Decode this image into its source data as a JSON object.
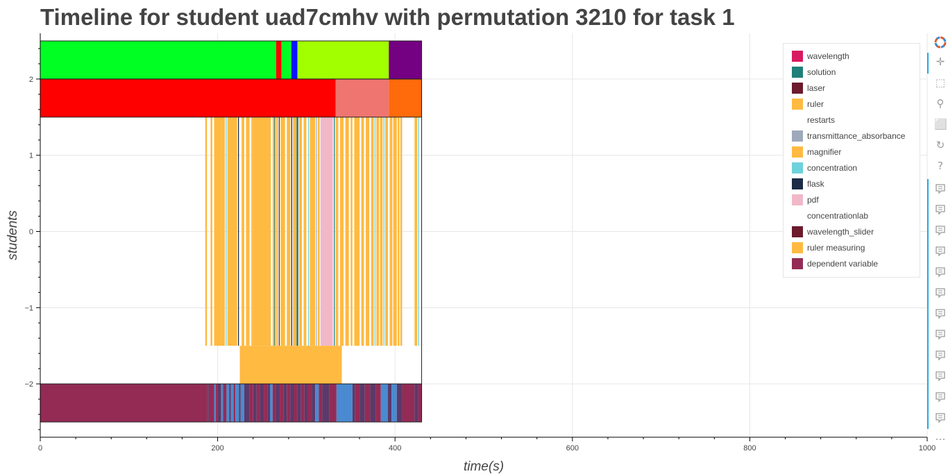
{
  "chart_data": {
    "type": "timeline",
    "title": "Timeline for student uad7cmhv with permutation 3210 for task 1",
    "xlabel": "time(s)",
    "ylabel": "students",
    "xlim": [
      0,
      1000
    ],
    "ylim": [
      -2.7,
      2.6
    ],
    "x_ticks": [
      0,
      200,
      400,
      600,
      800,
      1000
    ],
    "y_ticks": [
      2,
      1,
      0,
      -1,
      -2
    ],
    "y_tick_labels": [
      "2",
      "1",
      "0",
      "−1",
      "−2"
    ],
    "grid": true,
    "legend_position": "top-right",
    "legend": [
      {
        "label": "wavelength",
        "color": "#d81b60"
      },
      {
        "label": "solution",
        "color": "#1e8078"
      },
      {
        "label": "laser",
        "color": "#6c1a2e"
      },
      {
        "label": "ruler",
        "color": "#ffba42"
      },
      {
        "label": "restarts",
        "color": "#ffffff"
      },
      {
        "label": "transmittance_absorbance",
        "color": "#9eaabb"
      },
      {
        "label": "magnifier",
        "color": "#ffba42"
      },
      {
        "label": "concentration",
        "color": "#6dd2dc"
      },
      {
        "label": "flask",
        "color": "#1b2b45"
      },
      {
        "label": "pdf",
        "color": "#f1b8c8"
      },
      {
        "label": "concentrationlab",
        "color": "#ffffff"
      },
      {
        "label": "wavelength_slider",
        "color": "#6c1a2e"
      },
      {
        "label": "ruler measuring",
        "color": "#ffba42"
      },
      {
        "label": "dependent variable",
        "color": "#932b55"
      }
    ],
    "rows": [
      {
        "y_bottom": 2.0,
        "y_top": 2.5,
        "segments": [
          {
            "start": 0,
            "end": 266,
            "color": "#00ff22"
          },
          {
            "start": 266,
            "end": 272,
            "color": "#ff0000"
          },
          {
            "start": 272,
            "end": 281,
            "color": "#00ff22"
          },
          {
            "start": 281,
            "end": 283,
            "color": "#00ff22"
          },
          {
            "start": 283,
            "end": 290,
            "color": "#0a14ff"
          },
          {
            "start": 290,
            "end": 393,
            "color": "#a2ff00"
          },
          {
            "start": 393,
            "end": 430,
            "color": "#740082"
          }
        ]
      },
      {
        "y_bottom": 1.5,
        "y_top": 2.0,
        "segments": [
          {
            "start": 0,
            "end": 333,
            "color": "#ff0000"
          },
          {
            "start": 333,
            "end": 393,
            "color": "#ee7570"
          },
          {
            "start": 393,
            "end": 430,
            "color": "#ff6a0a"
          }
        ]
      },
      {
        "y_bottom": -1.5,
        "y_top": 1.5,
        "segments": [
          {
            "start": 186,
            "end": 188,
            "color": "#ffba42"
          },
          {
            "start": 192,
            "end": 194,
            "color": "#ffba42"
          },
          {
            "start": 196,
            "end": 208,
            "color": "#ffba42"
          },
          {
            "start": 209,
            "end": 210,
            "color": "#6dd2dc"
          },
          {
            "start": 211,
            "end": 222,
            "color": "#ffba42"
          },
          {
            "start": 223,
            "end": 224,
            "color": "#1b2b45"
          },
          {
            "start": 227,
            "end": 230,
            "color": "#ffba42"
          },
          {
            "start": 232,
            "end": 236,
            "color": "#ffba42"
          },
          {
            "start": 238,
            "end": 240,
            "color": "#ffba42"
          },
          {
            "start": 240,
            "end": 260,
            "color": "#ffba42"
          },
          {
            "start": 262,
            "end": 264,
            "color": "#ffba42"
          },
          {
            "start": 264,
            "end": 265,
            "color": "#1e8078"
          },
          {
            "start": 266,
            "end": 268,
            "color": "#ffba42"
          },
          {
            "start": 269,
            "end": 270,
            "color": "#6c1a2e"
          },
          {
            "start": 271,
            "end": 276,
            "color": "#ffba42"
          },
          {
            "start": 278,
            "end": 282,
            "color": "#ffba42"
          },
          {
            "start": 283,
            "end": 284,
            "color": "#1b2b45"
          },
          {
            "start": 285,
            "end": 289,
            "color": "#ffba42"
          },
          {
            "start": 289,
            "end": 291,
            "color": "#1e8078"
          },
          {
            "start": 292,
            "end": 295,
            "color": "#ffba42"
          },
          {
            "start": 297,
            "end": 300,
            "color": "#ffba42"
          },
          {
            "start": 302,
            "end": 303,
            "color": "#6dd2dc"
          },
          {
            "start": 304,
            "end": 310,
            "color": "#ffba42"
          },
          {
            "start": 311,
            "end": 312,
            "color": "#9eaabb"
          },
          {
            "start": 313,
            "end": 315,
            "color": "#ffba42"
          },
          {
            "start": 316,
            "end": 330,
            "color": "#f1b8c8"
          },
          {
            "start": 331,
            "end": 332,
            "color": "#1e8078"
          },
          {
            "start": 333,
            "end": 336,
            "color": "#ffba42"
          },
          {
            "start": 338,
            "end": 342,
            "color": "#ffba42"
          },
          {
            "start": 344,
            "end": 348,
            "color": "#ffba42"
          },
          {
            "start": 350,
            "end": 352,
            "color": "#ffba42"
          },
          {
            "start": 354,
            "end": 360,
            "color": "#ffba42"
          },
          {
            "start": 362,
            "end": 365,
            "color": "#ffba42"
          },
          {
            "start": 367,
            "end": 371,
            "color": "#ffba42"
          },
          {
            "start": 373,
            "end": 376,
            "color": "#ffba42"
          },
          {
            "start": 377,
            "end": 378,
            "color": "#6dd2dc"
          },
          {
            "start": 379,
            "end": 382,
            "color": "#ffba42"
          },
          {
            "start": 383,
            "end": 386,
            "color": "#ffba42"
          },
          {
            "start": 387,
            "end": 388,
            "color": "#6dd2dc"
          },
          {
            "start": 389,
            "end": 392,
            "color": "#ffba42"
          },
          {
            "start": 394,
            "end": 397,
            "color": "#ffba42"
          },
          {
            "start": 398,
            "end": 402,
            "color": "#ffba42"
          },
          {
            "start": 403,
            "end": 405,
            "color": "#ffba42"
          },
          {
            "start": 406,
            "end": 408,
            "color": "#ffba42"
          },
          {
            "start": 422,
            "end": 425,
            "color": "#ffba42"
          },
          {
            "start": 426,
            "end": 427,
            "color": "#6dd2dc"
          }
        ]
      },
      {
        "y_bottom": -2.0,
        "y_top": -1.5,
        "segments": [
          {
            "start": 225,
            "end": 340,
            "color": "#ffba42"
          }
        ]
      },
      {
        "y_bottom": -2.5,
        "y_top": -2.0,
        "segments": [
          {
            "start": 0,
            "end": 188,
            "color": "#932b55"
          },
          {
            "start": 188,
            "end": 190,
            "color": "#5a3a6a"
          },
          {
            "start": 190,
            "end": 196,
            "color": "#932b55"
          },
          {
            "start": 196,
            "end": 198,
            "color": "#4a8ad0"
          },
          {
            "start": 198,
            "end": 200,
            "color": "#932b55"
          },
          {
            "start": 200,
            "end": 204,
            "color": "#5a3a6a"
          },
          {
            "start": 204,
            "end": 206,
            "color": "#4a8ad0"
          },
          {
            "start": 206,
            "end": 210,
            "color": "#932b55"
          },
          {
            "start": 210,
            "end": 213,
            "color": "#4a8ad0"
          },
          {
            "start": 213,
            "end": 215,
            "color": "#5a3a6a"
          },
          {
            "start": 215,
            "end": 218,
            "color": "#4a8ad0"
          },
          {
            "start": 218,
            "end": 220,
            "color": "#932b55"
          },
          {
            "start": 220,
            "end": 224,
            "color": "#4a8ad0"
          },
          {
            "start": 224,
            "end": 226,
            "color": "#5a3a6a"
          },
          {
            "start": 226,
            "end": 230,
            "color": "#4a8ad0"
          },
          {
            "start": 230,
            "end": 236,
            "color": "#5a3a6a"
          },
          {
            "start": 236,
            "end": 240,
            "color": "#932b55"
          },
          {
            "start": 240,
            "end": 244,
            "color": "#5a3a6a"
          },
          {
            "start": 244,
            "end": 248,
            "color": "#932b55"
          },
          {
            "start": 248,
            "end": 252,
            "color": "#5a3a6a"
          },
          {
            "start": 252,
            "end": 256,
            "color": "#932b55"
          },
          {
            "start": 256,
            "end": 259,
            "color": "#5a3a6a"
          },
          {
            "start": 259,
            "end": 262,
            "color": "#4a8ad0"
          },
          {
            "start": 262,
            "end": 266,
            "color": "#932b55"
          },
          {
            "start": 266,
            "end": 270,
            "color": "#5a3a6a"
          },
          {
            "start": 270,
            "end": 274,
            "color": "#932b55"
          },
          {
            "start": 274,
            "end": 278,
            "color": "#5a3a6a"
          },
          {
            "start": 278,
            "end": 282,
            "color": "#932b55"
          },
          {
            "start": 282,
            "end": 286,
            "color": "#5a3a6a"
          },
          {
            "start": 286,
            "end": 290,
            "color": "#932b55"
          },
          {
            "start": 290,
            "end": 294,
            "color": "#5a3a6a"
          },
          {
            "start": 294,
            "end": 298,
            "color": "#932b55"
          },
          {
            "start": 298,
            "end": 302,
            "color": "#5a3a6a"
          },
          {
            "start": 302,
            "end": 306,
            "color": "#932b55"
          },
          {
            "start": 306,
            "end": 310,
            "color": "#5a3a6a"
          },
          {
            "start": 310,
            "end": 314,
            "color": "#4a8ad0"
          },
          {
            "start": 314,
            "end": 318,
            "color": "#932b55"
          },
          {
            "start": 318,
            "end": 326,
            "color": "#5a3a6a"
          },
          {
            "start": 326,
            "end": 334,
            "color": "#932b55"
          },
          {
            "start": 334,
            "end": 352,
            "color": "#4a8ad0"
          },
          {
            "start": 352,
            "end": 355,
            "color": "#5a3a6a"
          },
          {
            "start": 355,
            "end": 360,
            "color": "#932b55"
          },
          {
            "start": 360,
            "end": 366,
            "color": "#5a3a6a"
          },
          {
            "start": 366,
            "end": 372,
            "color": "#932b55"
          },
          {
            "start": 372,
            "end": 378,
            "color": "#5a3a6a"
          },
          {
            "start": 378,
            "end": 384,
            "color": "#932b55"
          },
          {
            "start": 384,
            "end": 392,
            "color": "#4a8ad0"
          },
          {
            "start": 392,
            "end": 396,
            "color": "#5a3a6a"
          },
          {
            "start": 396,
            "end": 402,
            "color": "#4a8ad0"
          },
          {
            "start": 402,
            "end": 408,
            "color": "#5a3a6a"
          },
          {
            "start": 408,
            "end": 422,
            "color": "#932b55"
          },
          {
            "start": 422,
            "end": 426,
            "color": "#5a3a6a"
          },
          {
            "start": 426,
            "end": 430,
            "color": "#932b55"
          }
        ]
      }
    ]
  },
  "toolbar": {
    "logo_icon": "bokeh-logo-icon",
    "items": [
      {
        "name": "pan-tool-icon",
        "glyph": "✛"
      },
      {
        "name": "box-zoom-tool-icon",
        "glyph": "⬚"
      },
      {
        "name": "wheel-zoom-tool-icon",
        "glyph": "⚲"
      },
      {
        "name": "save-tool-icon",
        "glyph": "⬜"
      },
      {
        "name": "reset-tool-icon",
        "glyph": "↻"
      },
      {
        "name": "help-tool-icon",
        "glyph": "?"
      }
    ],
    "hover_tool_count": 12
  }
}
